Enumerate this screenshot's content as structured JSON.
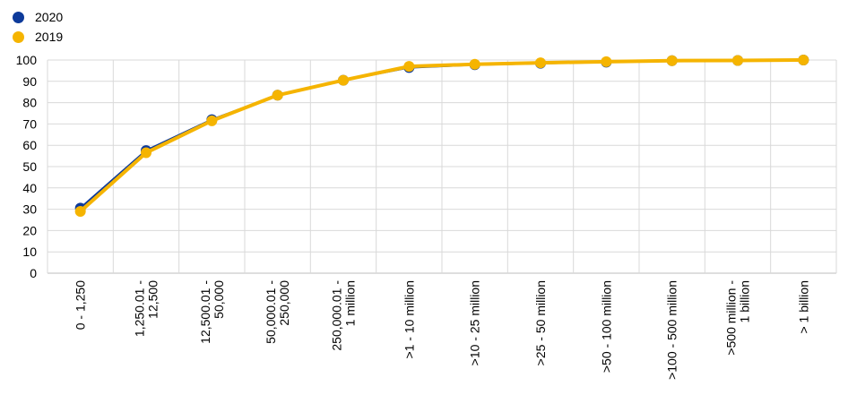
{
  "legend": {
    "items": [
      {
        "label": "2020",
        "color": "#0d3a9a"
      },
      {
        "label": "2019",
        "color": "#f5b400"
      }
    ]
  },
  "chart_data": {
    "type": "line",
    "title": "",
    "xlabel": "",
    "ylabel": "",
    "ylim": [
      0,
      100
    ],
    "yticks": [
      0,
      10,
      20,
      30,
      40,
      50,
      60,
      70,
      80,
      90,
      100
    ],
    "grid": true,
    "legend_position": "top-left",
    "categories": [
      "0 - 1,250",
      "1,250.01 - 12,500",
      "12,500.01 - 50,000",
      "50,000.01 - 250,000",
      "250,000.01 - 1 million",
      ">1 - 10 million",
      ">10 - 25 million",
      ">25 - 50 million",
      ">50 - 100 million",
      ">100 - 500 million",
      ">500 million - 1 billion",
      "> 1 billion"
    ],
    "category_lines": [
      [
        "0 - 1,250"
      ],
      [
        "1,250.01 -",
        "12,500"
      ],
      [
        "12,500.01 -",
        "50,000"
      ],
      [
        "50,000.01 -",
        "250,000"
      ],
      [
        "250,000.01 -",
        "1 million"
      ],
      [
        ">1 - 10 million"
      ],
      [
        ">10 - 25 million"
      ],
      [
        ">25 - 50 million"
      ],
      [
        ">50 - 100 million"
      ],
      [
        ">100 - 500 million"
      ],
      [
        ">500 million -",
        "1 billion"
      ],
      [
        "> 1 billion"
      ]
    ],
    "series": [
      {
        "name": "2020",
        "color": "#0d3a9a",
        "values": [
          30.5,
          57.5,
          72,
          83.5,
          90.5,
          96.5,
          97.8,
          98.5,
          99,
          99.7,
          99.8,
          100
        ]
      },
      {
        "name": "2019",
        "color": "#f5b400",
        "values": [
          29,
          56.5,
          71.5,
          83.5,
          90.5,
          97,
          98,
          98.7,
          99.2,
          99.7,
          99.8,
          100
        ]
      }
    ]
  }
}
